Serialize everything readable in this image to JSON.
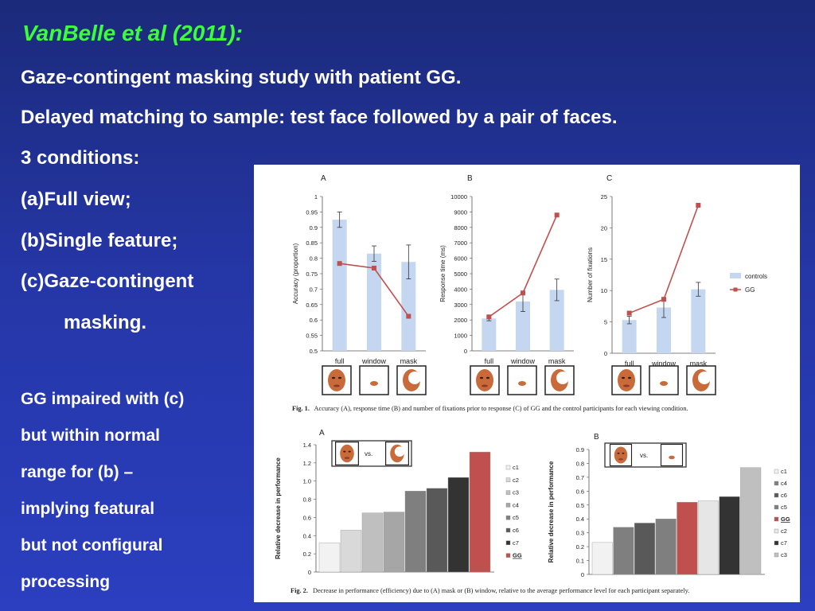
{
  "slide": {
    "title": "VanBelle et al (2011):",
    "lines": [
      "Gaze-contingent masking study with patient GG.",
      "Delayed matching to sample: test face followed by a pair of faces.",
      "3 conditions:",
      "(a)Full view;",
      "(b)Single feature;",
      "(c)Gaze-contingent",
      "masking."
    ],
    "conclusion": [
      "GG impaired with (c)",
      "but within normal",
      "range for (b) –",
      "implying featural",
      "but not configural",
      "processing"
    ]
  },
  "fig1": {
    "caption_label": "Fig. 1.",
    "caption": "Accuracy (A), response time (B) and number of fixations prior to response (C) of GG and the control participants for each viewing condition.",
    "legend": {
      "controls": "controls",
      "gg": "GG"
    }
  },
  "fig2": {
    "caption_label": "Fig. 2.",
    "caption": "Decrease in performance (efficiency) due to (A) mask or (B) window, relative to the average performance level for each participant separately.",
    "vs_label": "vs."
  },
  "colors": {
    "bar_blue": "#c5d7f0",
    "gg_red": "#c0504d",
    "title_green": "#3dfc3d"
  },
  "chart_data": [
    {
      "type": "bar",
      "panel": "A",
      "categories": [
        "full",
        "window",
        "mask"
      ],
      "series": [
        {
          "name": "controls",
          "values": [
            0.925,
            0.815,
            0.788
          ],
          "errors": [
            0.025,
            0.025,
            0.055
          ]
        },
        {
          "name": "GG",
          "values": [
            0.783,
            0.768,
            0.612
          ]
        }
      ],
      "ylabel": "Accuracy (proportion)",
      "ylim": [
        0.5,
        1
      ],
      "yticks": [
        "1",
        "0.95",
        "0.9",
        "0.85",
        "0.8",
        "0.75",
        "0.7",
        "0.65",
        "0.6",
        "0.55",
        "0.5"
      ]
    },
    {
      "type": "bar",
      "panel": "B",
      "categories": [
        "full",
        "window",
        "mask"
      ],
      "series": [
        {
          "name": "controls",
          "values": [
            2100,
            3200,
            3950
          ],
          "errors": [
            150,
            650,
            700
          ]
        },
        {
          "name": "GG",
          "values": [
            2200,
            3750,
            8800
          ]
        }
      ],
      "ylabel": "Response time (ms)",
      "ylim": [
        0,
        10000
      ],
      "yticks": [
        "10000",
        "9000",
        "8000",
        "7000",
        "6000",
        "5000",
        "4000",
        "3000",
        "2000",
        "1000",
        "0"
      ]
    },
    {
      "type": "bar",
      "panel": "C",
      "categories": [
        "full",
        "window",
        "mask"
      ],
      "series": [
        {
          "name": "controls",
          "values": [
            5.3,
            7.3,
            10.2
          ],
          "errors": [
            0.6,
            1.6,
            1.1
          ]
        },
        {
          "name": "GG",
          "values": [
            6.4,
            8.6,
            23.6
          ]
        }
      ],
      "ylabel": "Number of fixations",
      "ylim": [
        0,
        25
      ],
      "yticks": [
        "25",
        "20",
        "15",
        "10",
        "5",
        "0"
      ],
      "legend": "right"
    },
    {
      "type": "bar",
      "panel": "A",
      "categories": [
        "c1",
        "c2",
        "c3",
        "c4",
        "c5",
        "c6",
        "c7",
        "GG"
      ],
      "values": [
        0.32,
        0.46,
        0.65,
        0.66,
        0.89,
        0.92,
        1.04,
        1.32
      ],
      "colors": [
        "#f2f2f2",
        "#d9d9d9",
        "#bfbfbf",
        "#a6a6a6",
        "#7f7f7f",
        "#595959",
        "#333333",
        "#c0504d"
      ],
      "ylabel": "Relative decrease in performance",
      "ylim": [
        0,
        1.4
      ],
      "yticks": [
        "1.4",
        "1.2",
        "1.0",
        "0.8",
        "0.6",
        "0.4",
        "0.2",
        "0"
      ],
      "legend_order": [
        "c1",
        "c2",
        "c3",
        "c4",
        "c5",
        "c6",
        "c7",
        "GG"
      ]
    },
    {
      "type": "bar",
      "panel": "B",
      "categories": [
        "c1",
        "c4",
        "c6",
        "c5",
        "GG",
        "c2",
        "c7",
        "c3"
      ],
      "values": [
        0.23,
        0.34,
        0.37,
        0.4,
        0.52,
        0.53,
        0.56,
        0.77
      ],
      "colors": [
        "#f2f2f2",
        "#7f7f7f",
        "#595959",
        "#7f7f7f",
        "#c0504d",
        "#e6e6e6",
        "#333333",
        "#bfbfbf"
      ],
      "ylabel": "Relative decrease in performance",
      "ylim": [
        0,
        0.9
      ],
      "yticks": [
        "0.9",
        "0.8",
        "0.7",
        "0.6",
        "0.5",
        "0.4",
        "0.3",
        "0.2",
        "0.1",
        "0"
      ],
      "legend_order": [
        "c1",
        "c4",
        "c6",
        "c5",
        "GG",
        "c2",
        "c7",
        "c3"
      ]
    }
  ]
}
